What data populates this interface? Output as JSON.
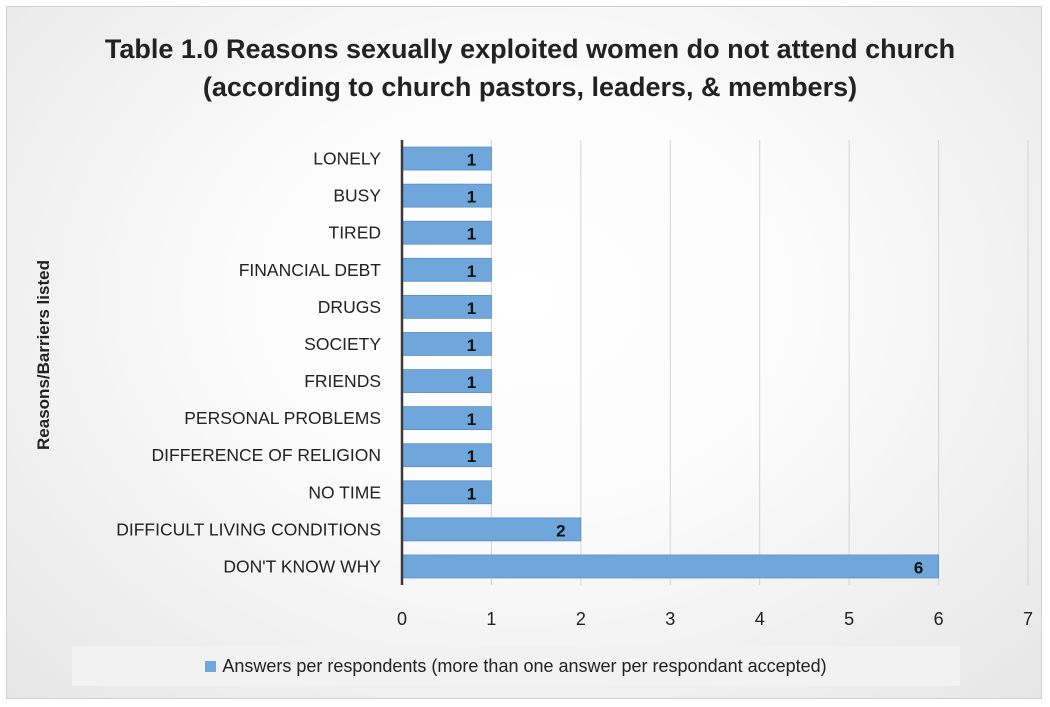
{
  "chart_data": {
    "type": "bar",
    "orientation": "horizontal",
    "title": "Table 1.0 Reasons sexually exploited women do not attend church (according to church pastors, leaders, & members)",
    "xlabel": "",
    "ylabel": "Reasons/Barriers listed",
    "categories": [
      "LONELY",
      "BUSY",
      "TIRED",
      "FINANCIAL DEBT",
      "DRUGS",
      "SOCIETY",
      "FRIENDS",
      "PERSONAL PROBLEMS",
      "DIFFERENCE OF RELIGION",
      "NO TIME",
      "DIFFICULT LIVING CONDITIONS",
      "DON'T KNOW WHY"
    ],
    "series": [
      {
        "name": "Answers per respondents (more than one answer per respondant accepted)",
        "values": [
          1,
          1,
          1,
          1,
          1,
          1,
          1,
          1,
          1,
          1,
          2,
          6
        ]
      }
    ],
    "xlim": [
      0,
      7
    ],
    "xticks": [
      0,
      1,
      2,
      3,
      4,
      5,
      6,
      7
    ],
    "grid": true,
    "legend": "bottom",
    "colors": {
      "bar": "#6fa7dc",
      "bar_edge": "#5a8fc4",
      "grid": "#d4d4d4",
      "axis": "#3a3a3a"
    }
  }
}
